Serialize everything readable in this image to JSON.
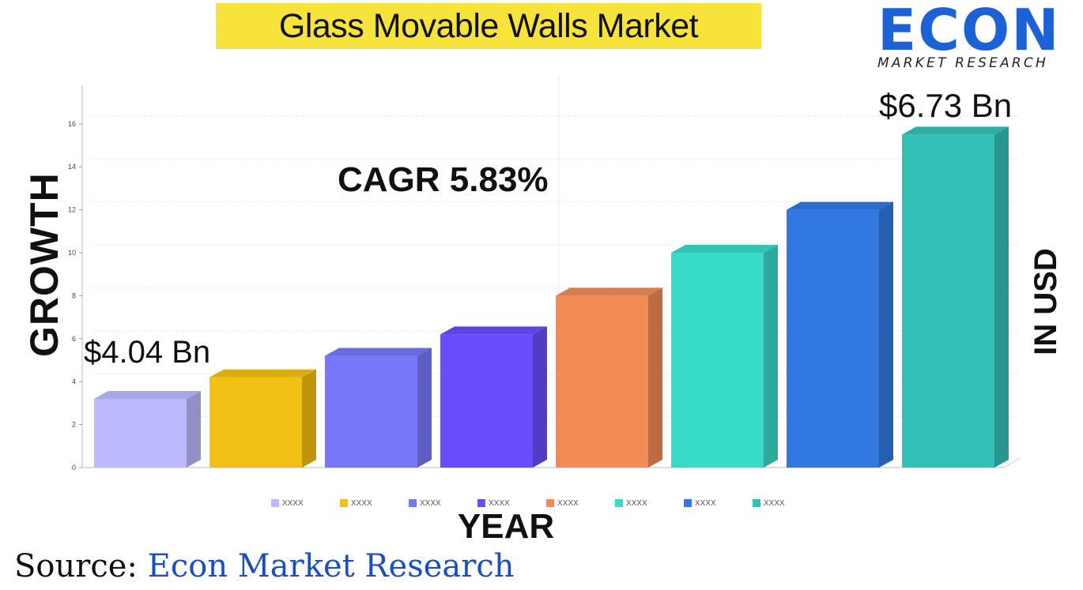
{
  "title": "Glass Movable Walls Market",
  "logo": {
    "main": "ECON",
    "sub": "MARKET RESEARCH"
  },
  "annotations": {
    "cagr": "CAGR 5.83%",
    "start_value": "$4.04 Bn",
    "end_value": "$6.73 Bn"
  },
  "y_axis_label": "GROWTH",
  "unit_label": "IN USD",
  "x_axis_label": "YEAR",
  "source": {
    "label": "Source:",
    "name": "Econ Market Research"
  },
  "chart_data": {
    "type": "bar",
    "categories": [
      "XXXX",
      "XXXX",
      "XXXX",
      "XXXX",
      "XXXX",
      "XXXX",
      "XXXX",
      "XXXX"
    ],
    "values": [
      3.2,
      4.2,
      5.2,
      6.2,
      8.0,
      10.0,
      12.0,
      15.5
    ],
    "colors": [
      "#babafd",
      "#f2c012",
      "#7777fb",
      "#6a4cfc",
      "#f28b55",
      "#38dbc8",
      "#3178e2",
      "#33c0b8"
    ],
    "ylim": [
      0,
      17
    ],
    "yticks": [
      0,
      2,
      4,
      6,
      8,
      10,
      12,
      14,
      16
    ],
    "grid": true,
    "legend": "bottom"
  }
}
